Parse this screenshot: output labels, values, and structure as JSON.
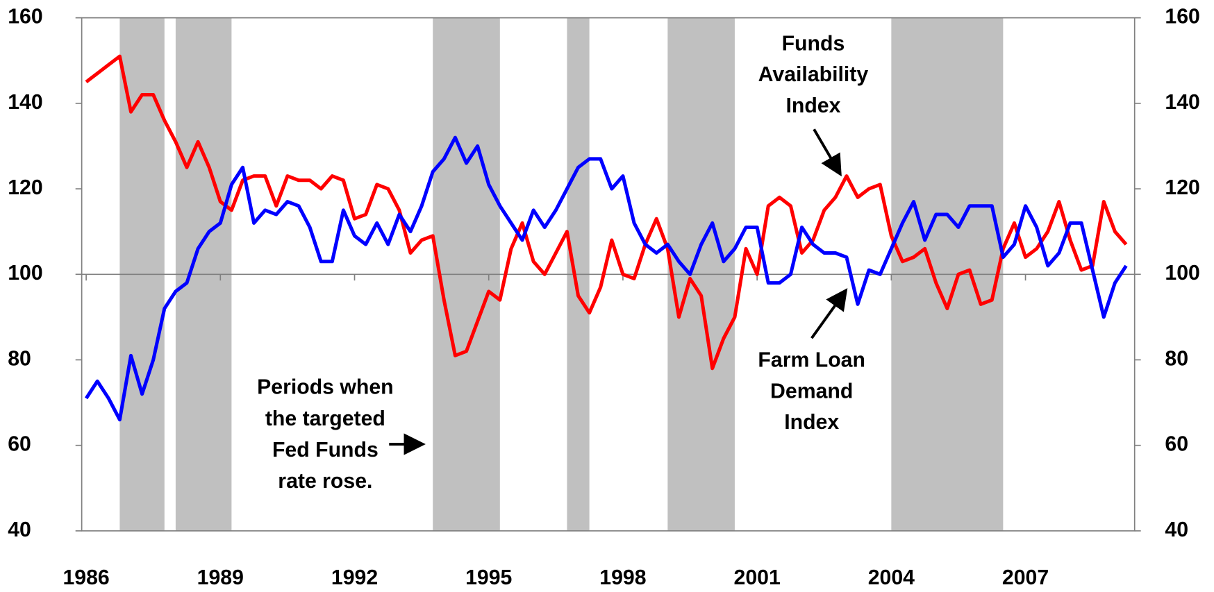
{
  "chart_data": {
    "type": "line",
    "x": [
      1986,
      1986.25,
      1986.5,
      1986.75,
      1987,
      1987.25,
      1987.5,
      1987.75,
      1988,
      1988.25,
      1988.5,
      1988.75,
      1989,
      1989.25,
      1989.5,
      1989.75,
      1990,
      1990.25,
      1990.5,
      1990.75,
      1991,
      1991.25,
      1991.5,
      1991.75,
      1992,
      1992.25,
      1992.5,
      1992.75,
      1993,
      1993.25,
      1993.5,
      1993.75,
      1994,
      1994.25,
      1994.5,
      1994.75,
      1995,
      1995.25,
      1995.5,
      1995.75,
      1996,
      1996.25,
      1996.5,
      1996.75,
      1997,
      1997.25,
      1997.5,
      1997.75,
      1998,
      1998.25,
      1998.5,
      1998.75,
      1999,
      1999.25,
      1999.5,
      1999.75,
      2000,
      2000.25,
      2000.5,
      2000.75,
      2001,
      2001.25,
      2001.5,
      2001.75,
      2002,
      2002.25,
      2002.5,
      2002.75,
      2003,
      2003.25,
      2003.5,
      2003.75,
      2004,
      2004.25,
      2004.5,
      2004.75,
      2005,
      2005.25,
      2005.5,
      2005.75,
      2006,
      2006.25,
      2006.5,
      2006.75,
      2007,
      2007.25,
      2007.5,
      2007.75,
      2008,
      2008.25,
      2008.5,
      2008.75,
      2009,
      2009.25
    ],
    "series": [
      {
        "name": "Funds Availability Index",
        "color": "#ff0000",
        "values": [
          145,
          147,
          149,
          151,
          138,
          142,
          142,
          136,
          131,
          125,
          131,
          125,
          117,
          115,
          122,
          123,
          123,
          116,
          123,
          122,
          122,
          120,
          123,
          122,
          113,
          114,
          121,
          120,
          115,
          105,
          108,
          109,
          94,
          81,
          82,
          89,
          96,
          94,
          106,
          112,
          103,
          100,
          105,
          110,
          95,
          91,
          97,
          108,
          100,
          99,
          107,
          113,
          106,
          90,
          99,
          95,
          78,
          85,
          90,
          106,
          100,
          116,
          118,
          116,
          105,
          108,
          115,
          118,
          123,
          118,
          120,
          121,
          109,
          103,
          104,
          106,
          98,
          92,
          100,
          101,
          93,
          94,
          106,
          112,
          104,
          106,
          110,
          117,
          108,
          101,
          102,
          117,
          110,
          107
        ]
      },
      {
        "name": "Farm Loan Demand Index",
        "color": "#0000ff",
        "values": [
          71,
          75,
          71,
          66,
          81,
          72,
          80,
          92,
          96,
          98,
          106,
          110,
          112,
          121,
          125,
          112,
          115,
          114,
          117,
          116,
          111,
          103,
          103,
          115,
          109,
          107,
          112,
          107,
          114,
          110,
          116,
          124,
          127,
          132,
          126,
          130,
          121,
          116,
          112,
          108,
          115,
          111,
          115,
          120,
          125,
          127,
          127,
          120,
          123,
          112,
          107,
          105,
          107,
          103,
          100,
          107,
          112,
          103,
          106,
          111,
          111,
          98,
          98,
          100,
          111,
          107,
          105,
          105,
          104,
          93,
          101,
          100,
          106,
          112,
          117,
          108,
          114,
          114,
          111,
          116,
          116,
          116,
          104,
          107,
          116,
          111,
          102,
          105,
          112,
          112,
          101,
          90,
          98,
          102
        ]
      }
    ],
    "xlim": [
      1985.9,
      2009.44
    ],
    "xticks": [
      1986,
      1989,
      1992,
      1995,
      1998,
      2001,
      2004,
      2007
    ],
    "ylim": [
      40,
      160
    ],
    "yticks": [
      40,
      60,
      80,
      100,
      120,
      140,
      160
    ],
    "y2lim": [
      40,
      160
    ],
    "y2ticks": [
      40,
      60,
      80,
      100,
      120,
      140,
      160
    ],
    "x_axis_at": 100,
    "shaded_periods": [
      [
        1986.75,
        1987.75
      ],
      [
        1988,
        1989.25
      ],
      [
        1993.75,
        1995.25
      ],
      [
        1996.75,
        1997.25
      ],
      [
        1999,
        2000.5
      ],
      [
        2004,
        2006.5
      ]
    ],
    "shade_color": "#c0c0c0",
    "annotations": {
      "funds": [
        "Funds",
        "Availability",
        "Index"
      ],
      "demand": [
        "Farm Loan",
        "Demand",
        "Index"
      ],
      "periods": [
        "Periods when",
        "the targeted",
        "Fed Funds",
        "rate rose."
      ]
    }
  }
}
